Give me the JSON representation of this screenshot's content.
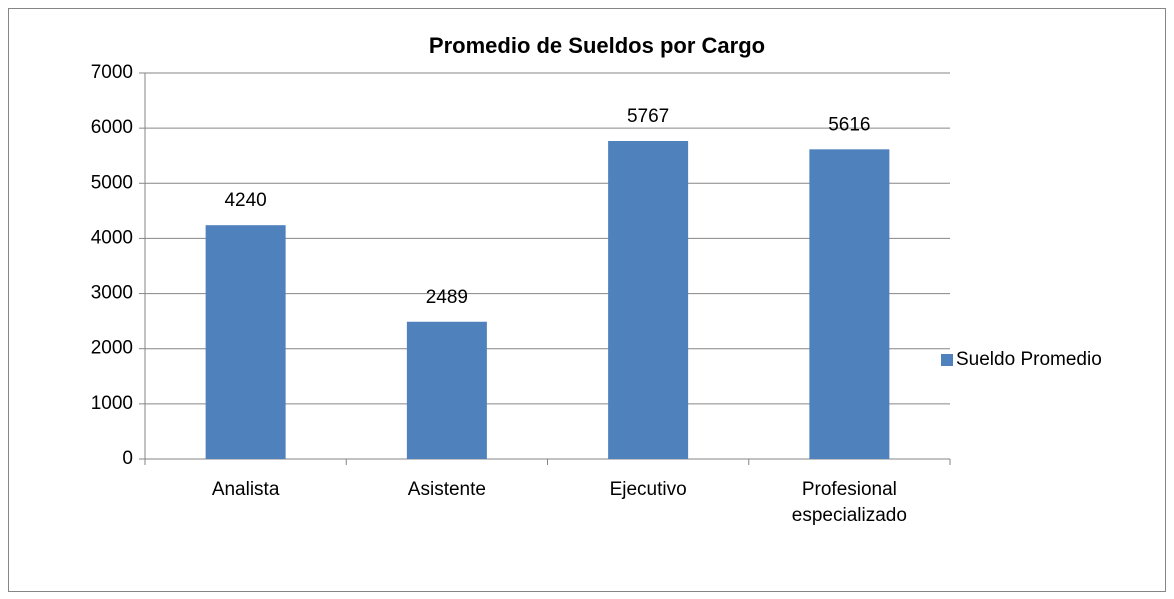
{
  "chart_data": {
    "type": "bar",
    "title": "Promedio de Sueldos por Cargo",
    "categories": [
      "Analista",
      "Asistente",
      "Ejecutivo",
      "Profesional especializado"
    ],
    "series": [
      {
        "name": "Sueldo Promedio",
        "color": "#4f81bd",
        "values": [
          4240,
          2489,
          5767,
          5616
        ]
      }
    ],
    "ylim": [
      0,
      7000
    ],
    "yticks": [
      0,
      1000,
      2000,
      3000,
      4000,
      5000,
      6000,
      7000
    ],
    "grid": true,
    "legend": "right"
  }
}
